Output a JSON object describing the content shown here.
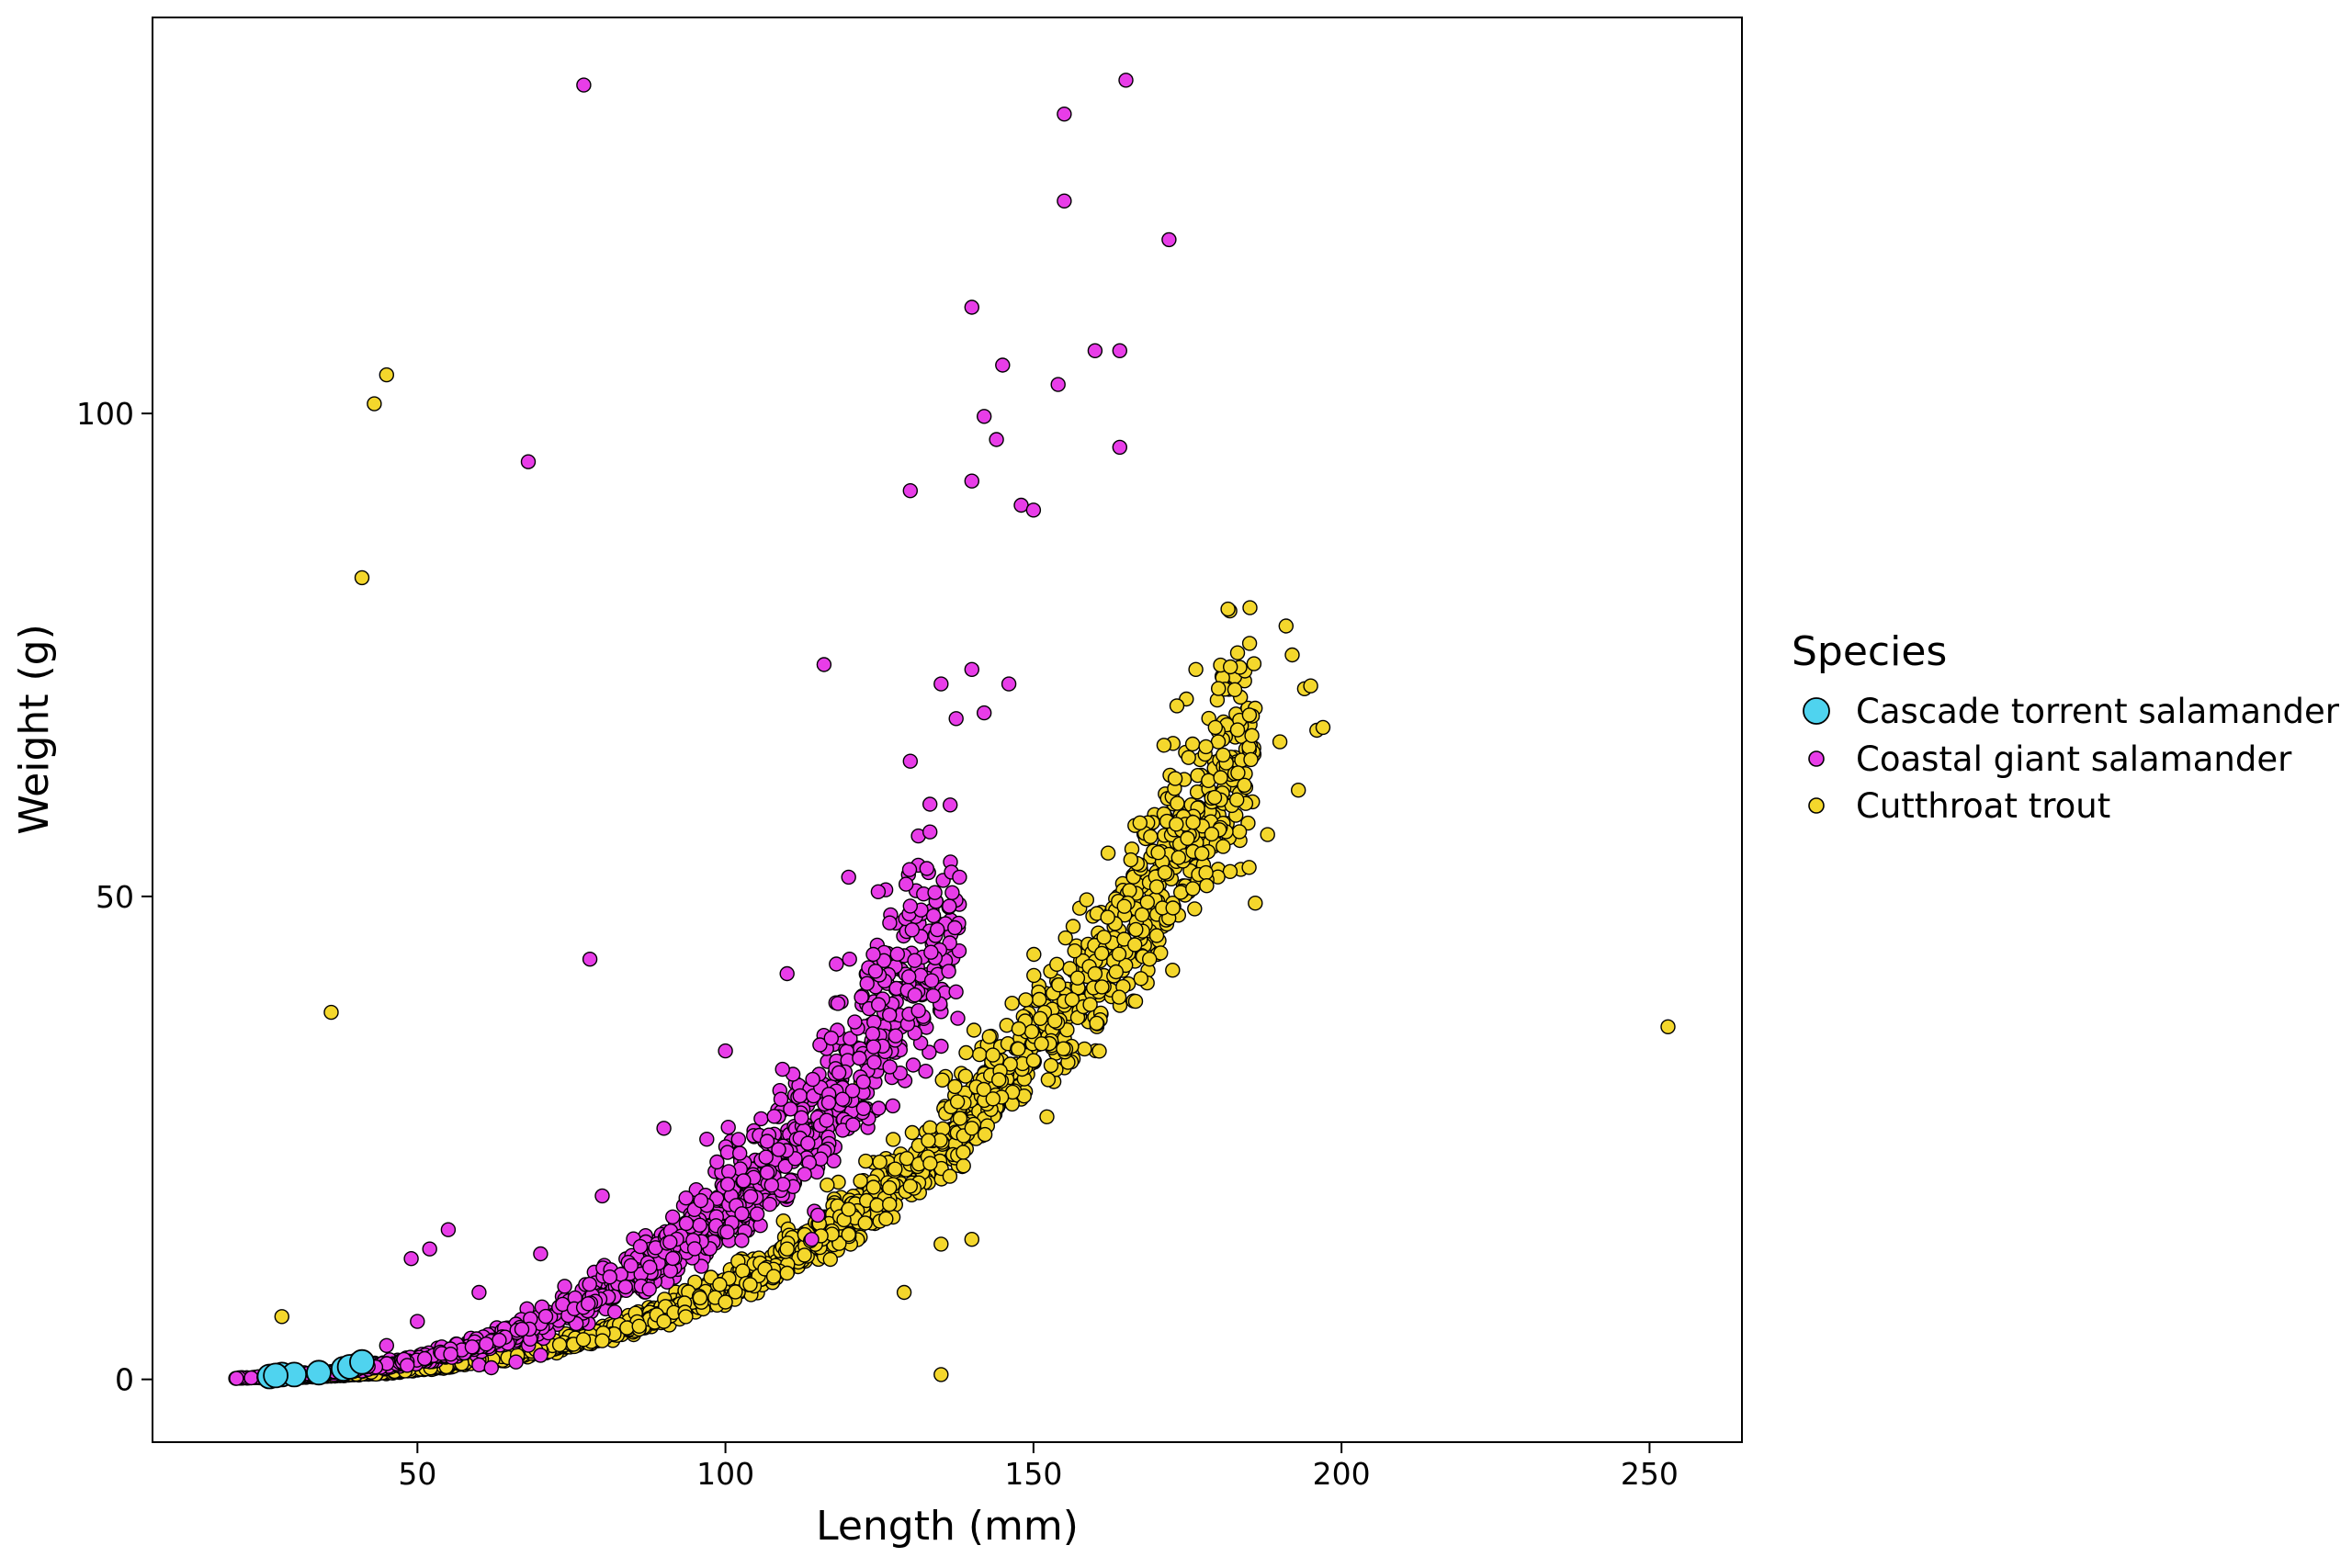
{
  "chart_data": {
    "type": "scatter",
    "title": "",
    "xlabel": "Length (mm)",
    "ylabel": "Weight (g)",
    "xlim": [
      7,
      265
    ],
    "ylim": [
      -6.5,
      141
    ],
    "x_ticks": [
      50,
      100,
      150,
      200,
      250
    ],
    "y_ticks": [
      0,
      50,
      100
    ],
    "grid": false,
    "legend": {
      "title": "Species",
      "placement": "right",
      "entries": [
        {
          "label": "Cascade torrent salamander",
          "color": "#4fd3ef"
        },
        {
          "label": "Coastal giant salamander",
          "color": "#e83de8"
        },
        {
          "label": "Cutthroat trout",
          "color": "#f4d72c"
        }
      ]
    },
    "series": [
      {
        "name": "Cutthroat trout",
        "color": "#f4d72c",
        "points": [
          [
            36,
            38
          ],
          [
            41,
            83
          ],
          [
            43,
            101
          ],
          [
            45,
            104
          ],
          [
            253,
            36.5
          ],
          [
            135,
            0.5
          ],
          [
            129,
            9
          ],
          [
            135,
            14
          ],
          [
            140,
            14.5
          ],
          [
            28,
            6.5
          ],
          [
            191,
            78
          ],
          [
            192,
            75
          ],
          [
            194,
            71.5
          ],
          [
            195,
            71.8
          ],
          [
            196,
            67.2
          ],
          [
            197,
            67.5
          ],
          [
            193,
            61
          ],
          [
            190,
            66
          ],
          [
            188,
            56.4
          ],
          [
            186,
            49.3
          ],
          [
            180,
            66
          ],
          [
            178,
            65.5
          ],
          [
            173,
            62.2
          ],
          [
            122,
            30.8
          ],
          [
            115,
            23.4
          ],
          [
            98,
            18.1
          ],
          [
            94,
            15.3
          ],
          [
            93,
            13.8
          ],
          [
            120,
            17.6
          ],
          [
            110,
            13.5
          ],
          [
            60,
            2
          ],
          [
            70,
            2.5
          ],
          [
            80,
            4
          ],
          [
            90,
            6
          ],
          [
            100,
            8
          ],
          [
            110,
            11
          ],
          [
            120,
            15
          ],
          [
            130,
            20
          ],
          [
            140,
            26
          ],
          [
            150,
            33
          ],
          [
            160,
            42
          ],
          [
            170,
            51
          ],
          [
            175,
            56
          ],
          [
            183,
            60
          ],
          [
            185,
            53
          ]
        ],
        "trend": {
          "a": 4.15e-06,
          "b": 3.18,
          "x_range": [
            25,
            186
          ],
          "n": 2000,
          "sd": 0.09,
          "seed": 31
        }
      },
      {
        "name": "Coastal giant salamander",
        "color": "#e83de8",
        "points": [
          [
            77,
            134
          ],
          [
            165,
            134.5
          ],
          [
            155,
            131
          ],
          [
            155,
            122
          ],
          [
            172,
            118
          ],
          [
            140,
            111
          ],
          [
            145,
            105
          ],
          [
            164,
            106.5
          ],
          [
            160,
            106.5
          ],
          [
            154,
            103
          ],
          [
            68,
            95
          ],
          [
            164,
            96.5
          ],
          [
            142,
            99.7
          ],
          [
            144,
            97.3
          ],
          [
            140,
            93
          ],
          [
            148,
            90.5
          ],
          [
            150,
            90
          ],
          [
            130,
            92
          ],
          [
            78,
            43.5
          ],
          [
            116,
            74
          ],
          [
            140,
            73.5
          ],
          [
            146,
            72
          ],
          [
            142,
            69
          ],
          [
            121,
            37
          ],
          [
            119,
            29
          ],
          [
            109,
            29
          ],
          [
            55,
            15.5
          ],
          [
            52,
            13.5
          ],
          [
            49,
            12.5
          ],
          [
            96,
            18.5
          ],
          [
            91,
            14.2
          ],
          [
            115,
            17
          ],
          [
            114,
            14.5
          ],
          [
            138,
            52
          ],
          [
            134,
            50.4
          ],
          [
            130,
            49
          ],
          [
            124,
            44
          ],
          [
            118,
            43
          ],
          [
            60,
            1.5
          ],
          [
            62,
            1.2
          ],
          [
            66,
            1.8
          ],
          [
            70,
            2.5
          ],
          [
            40,
            2
          ],
          [
            45,
            3.5
          ],
          [
            50,
            6
          ],
          [
            60,
            9
          ],
          [
            70,
            13
          ],
          [
            80,
            19
          ],
          [
            90,
            26
          ],
          [
            100,
            34
          ],
          [
            110,
            42
          ],
          [
            120,
            52
          ],
          [
            130,
            64
          ],
          [
            135,
            72
          ]
        ],
        "trend": {
          "a": 9.8e-06,
          "b": 3.13,
          "x_range": [
            20,
            138
          ],
          "n": 1300,
          "sd": 0.13,
          "seed": 17
        }
      },
      {
        "name": "Cascade torrent salamander",
        "color": "#4fd3ef",
        "points": [
          [
            26,
            0.3
          ],
          [
            28,
            0.5
          ],
          [
            30,
            0.5
          ],
          [
            34,
            0.7
          ],
          [
            38,
            1.1
          ],
          [
            39,
            1.3
          ],
          [
            41,
            1.8
          ],
          [
            27,
            0.4
          ]
        ]
      }
    ]
  }
}
